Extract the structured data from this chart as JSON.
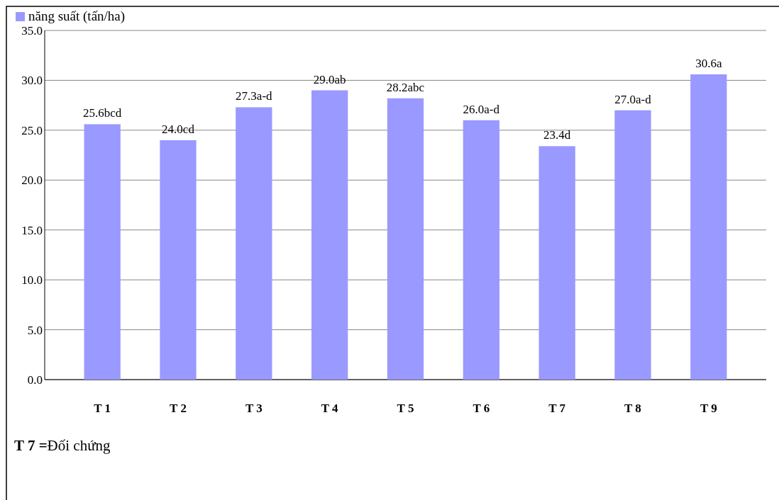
{
  "chart_data": {
    "type": "bar",
    "categories": [
      "T 1",
      "T 2",
      "T 3",
      "T 4",
      "T 5",
      "T 6",
      "T 7",
      "T 8",
      "T 9"
    ],
    "series": [
      {
        "name": "năng suất (tấn/ha)",
        "color": "#9999ff",
        "values": [
          25.6,
          24.0,
          27.3,
          29.0,
          28.2,
          26.0,
          23.4,
          27.0,
          30.6
        ],
        "value_labels": [
          "25.6bcd",
          "24.0cd",
          "27.3a-d",
          "29.0ab",
          "28.2abc",
          "26.0a-d",
          "23.4d",
          "27.0a-d",
          "30.6a"
        ]
      }
    ],
    "ylim": [
      0,
      35
    ],
    "yticks": [
      {
        "value": 0,
        "label": "0.0"
      },
      {
        "value": 5,
        "label": "5.0"
      },
      {
        "value": 10,
        "label": "10.0"
      },
      {
        "value": 15,
        "label": "15.0"
      },
      {
        "value": 20,
        "label": "20.0"
      },
      {
        "value": 25,
        "label": "25.0"
      },
      {
        "value": 30,
        "label": "30.0"
      },
      {
        "value": 35,
        "label": "35.0"
      }
    ],
    "grid": "y",
    "legend": "top left",
    "annotations": [
      "T 7 =Đối chứng"
    ]
  }
}
